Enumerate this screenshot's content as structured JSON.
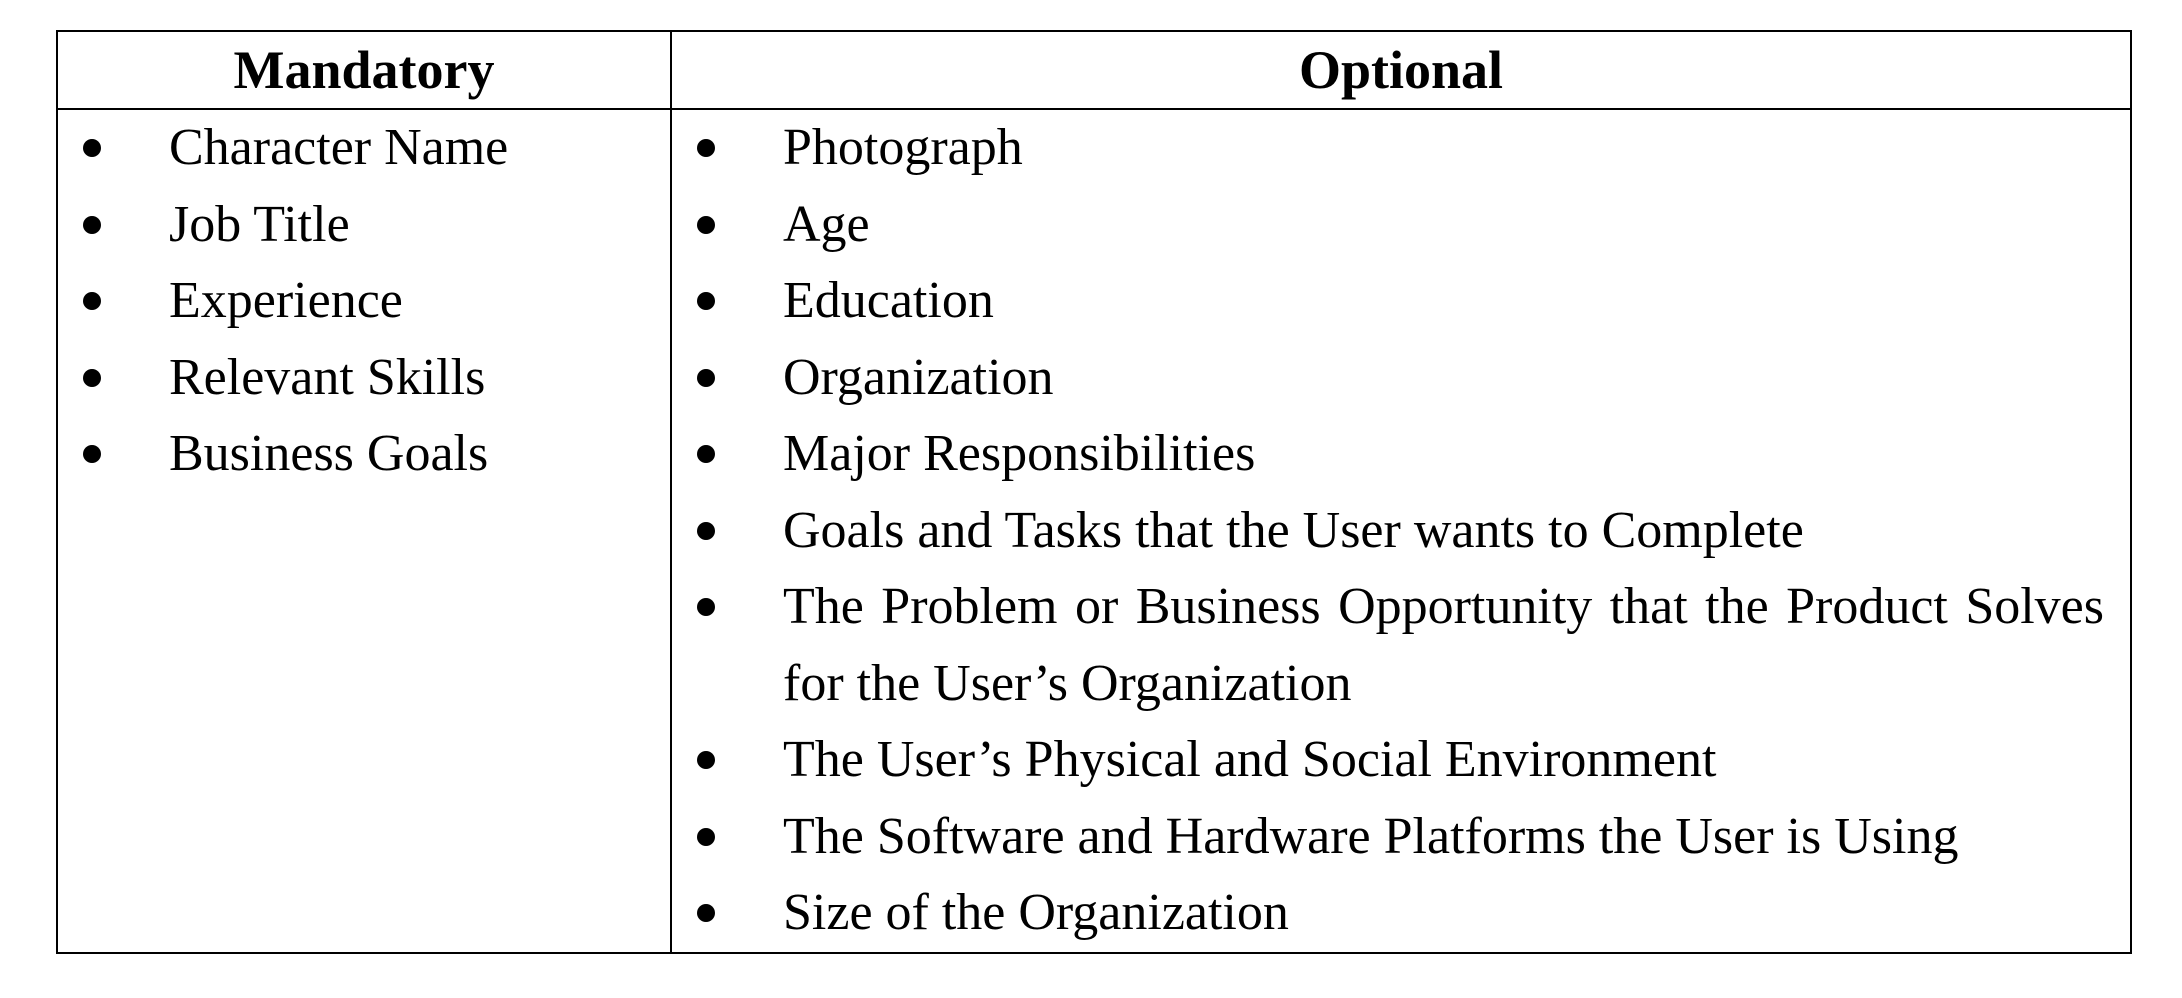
{
  "table": {
    "headers": {
      "mandatory": "Mandatory",
      "optional": "Optional"
    },
    "mandatory_items": [
      "Character Name",
      "Job Title",
      "Experience",
      "Relevant Skills",
      "Business Goals"
    ],
    "optional_items": [
      "Photograph",
      "Age",
      "Education",
      "Organization",
      "Major Responsibilities",
      "Goals and Tasks that the User wants to Complete",
      "The Problem or Business Opportunity that the Product Solves for the User’s Organization",
      "The User’s Physical and Social Environment",
      "The Software and Hardware Platforms the User is Using",
      "Size of the Organization"
    ]
  }
}
